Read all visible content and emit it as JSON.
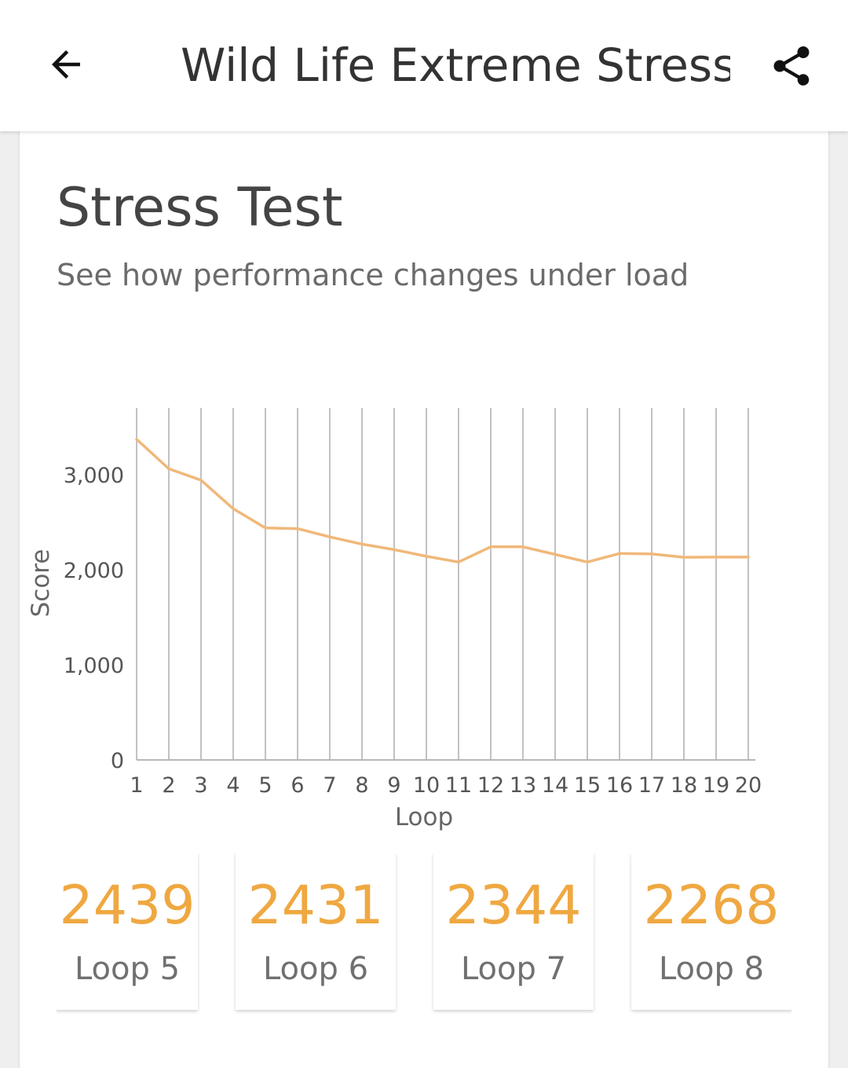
{
  "header": {
    "title": "Wild Life Extreme Stress...",
    "back_icon": "arrow-back-icon",
    "share_icon": "share-icon"
  },
  "card": {
    "title": "Stress Test",
    "subtitle": "See how performance changes under load"
  },
  "chart_data": {
    "type": "line",
    "title": "",
    "xlabel": "Loop",
    "ylabel": "Score",
    "x": [
      1,
      2,
      3,
      4,
      5,
      6,
      7,
      8,
      9,
      10,
      11,
      12,
      13,
      14,
      15,
      16,
      17,
      18,
      19,
      20
    ],
    "y_ticks": [
      "0",
      "1,000",
      "2,000",
      "3,000"
    ],
    "ylim": [
      0,
      3700
    ],
    "grid": "vertical",
    "legend": "none",
    "series": [
      {
        "color": "#f0b87a",
        "values": [
          3370,
          3060,
          2940,
          2640,
          2439,
          2431,
          2344,
          2268,
          2210,
          2140,
          2080,
          2240,
          2240,
          2160,
          2080,
          2170,
          2165,
          2130,
          2132,
          2132
        ]
      }
    ]
  },
  "loops": [
    {
      "score": "2439",
      "label": "Loop 5"
    },
    {
      "score": "2431",
      "label": "Loop 6"
    },
    {
      "score": "2344",
      "label": "Loop 7"
    },
    {
      "score": "2268",
      "label": "Loop 8"
    }
  ],
  "colors": {
    "accent": "#efa841",
    "line": "#f0b87a",
    "title_text": "#333333"
  }
}
